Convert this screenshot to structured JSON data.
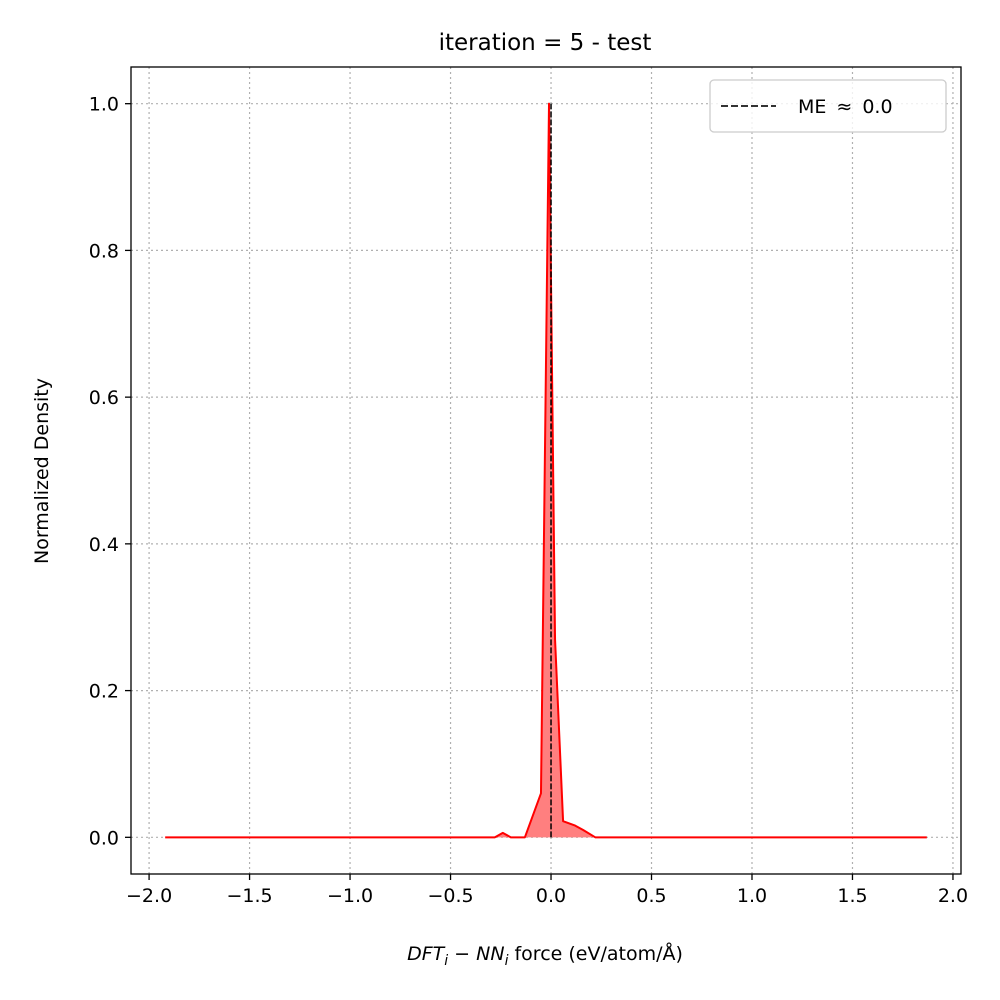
{
  "chart_data": {
    "type": "area",
    "title": "iteration = 5 - test",
    "xlabel_main": "DFT",
    "xlabel_sub1": "i",
    "xlabel_minus": " − ",
    "xlabel_main2": "NN",
    "xlabel_sub2": "i",
    "xlabel_rest": " force (eV/atom/Å)",
    "ylabel": "Normalized Density",
    "xlim": [
      -2.09,
      2.04
    ],
    "ylim": [
      -0.05,
      1.05
    ],
    "xticks": [
      -2.0,
      -1.5,
      -1.0,
      -0.5,
      0.0,
      0.5,
      1.0,
      1.5,
      2.0
    ],
    "xtick_labels": [
      "−2.0",
      "−1.5",
      "−1.0",
      "−0.5",
      "0.0",
      "0.5",
      "1.0",
      "1.5",
      "2.0"
    ],
    "yticks": [
      0.0,
      0.2,
      0.4,
      0.6,
      0.8,
      1.0
    ],
    "ytick_labels": [
      "0.0",
      "0.2",
      "0.4",
      "0.6",
      "0.8",
      "1.0"
    ],
    "grid": true,
    "series": [
      {
        "color": "#ff0000",
        "fill_color": "#ff7f7f",
        "x": [
          -1.92,
          -0.28,
          -0.24,
          -0.2,
          -0.13,
          -0.05,
          -0.01,
          0.02,
          0.06,
          0.12,
          0.16,
          0.22,
          1.87
        ],
        "y": [
          0.0,
          0.0,
          0.006,
          0.0,
          0.0,
          0.06,
          1.0,
          0.27,
          0.022,
          0.016,
          0.01,
          0.0,
          0.0
        ]
      }
    ],
    "vline": {
      "x": 0.0,
      "ymax": 1.0,
      "color": "#000000",
      "style": "dashed"
    },
    "legend": {
      "position": "top-right",
      "label_pre": "ME",
      "approx": "≈",
      "label_value": "0.0"
    }
  }
}
